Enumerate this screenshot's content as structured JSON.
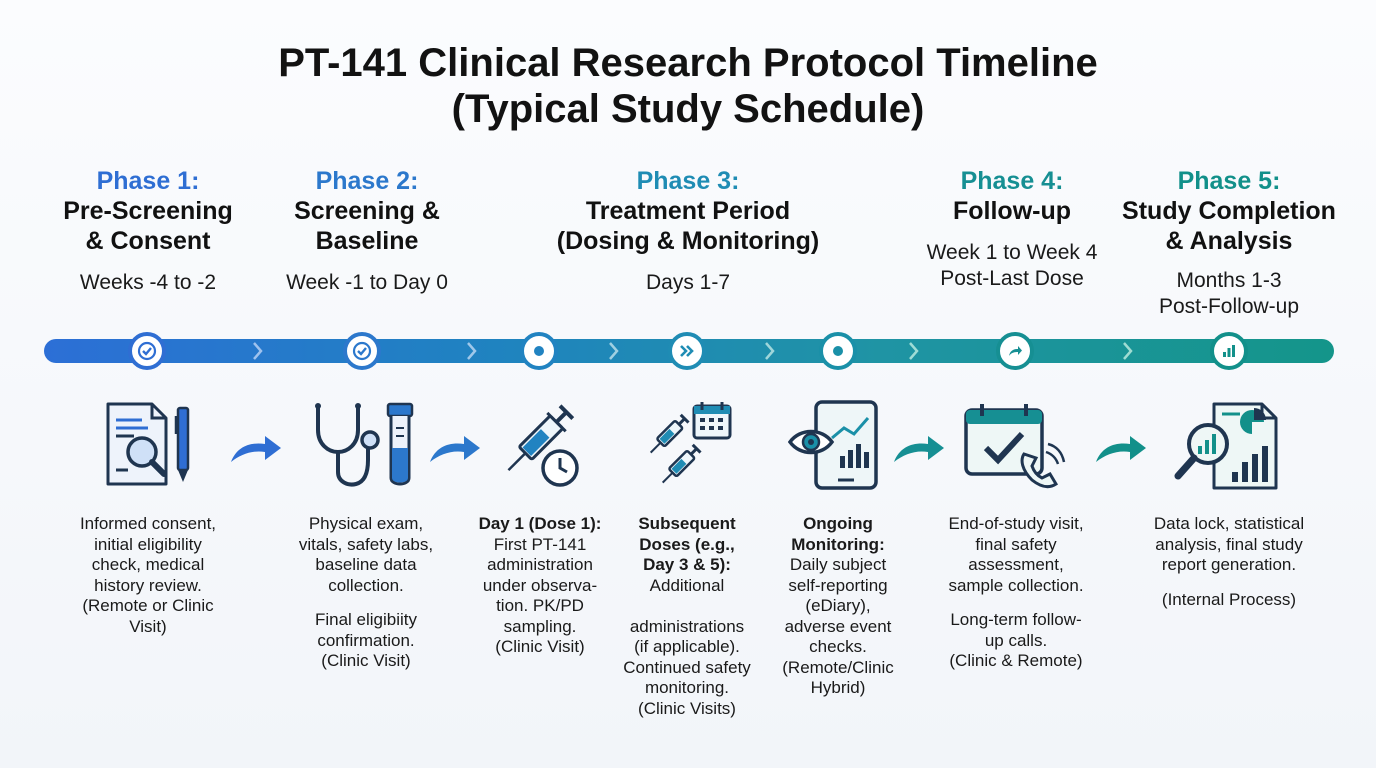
{
  "title": {
    "line1": "PT-141 Clinical Research Protocol Timeline",
    "line2": "(Typical Study Schedule)"
  },
  "colors": {
    "phase1": "#2f6ed3",
    "phase2": "#2c78cc",
    "phase3": "#1f8cb4",
    "phase4": "#168f93",
    "phase5": "#12908a",
    "icon_dark": "#1f3550"
  },
  "phases": [
    {
      "number": "Phase 1:",
      "name": [
        "Pre-Screening",
        "& Consent"
      ],
      "time": [
        "Weeks -4 to -2"
      ],
      "icon": "document-magnifier-pen-icon",
      "node_icon": "check-icon",
      "description": [
        "Informed consent,",
        "initial eligibility",
        "check, medical",
        "history review.",
        "(Remote or Clinic",
        "Visit)"
      ]
    },
    {
      "number": "Phase 2:",
      "name": [
        "Screening &",
        "Baseline"
      ],
      "time": [
        "Week -1 to Day 0"
      ],
      "icon": "stethoscope-test-tube-icon",
      "node_icon": "check-icon",
      "description": [
        "Physical exam,",
        "vitals, safety labs,",
        "baseline data",
        "collection."
      ],
      "description2": [
        "Final eligibiity",
        "confirmation.",
        "(Clinic Visit)"
      ]
    },
    {
      "number": "Phase 3:",
      "name": [
        "Treatment Period",
        "(Dosing & Monitoring)"
      ],
      "time": [
        "Days 1-7"
      ],
      "icon": "syringe-clock-icon",
      "node_icon": "dot-icon"
    },
    {
      "number": "Phase 4:",
      "name": [
        "Follow-up"
      ],
      "time": [
        "Week 1 to Week 4",
        "Post-Last Dose"
      ],
      "icon": "calendar-check-phone-icon",
      "node_icon": "share-arrow-icon",
      "description": [
        "End-of-study visit,",
        "final safety",
        "assessment,",
        "sample collection."
      ],
      "description2": [
        "Long-term follow-",
        "up calls.",
        "(Clinic & Remote)"
      ]
    },
    {
      "number": "Phase 5:",
      "name": [
        "Study Completion",
        "& Analysis"
      ],
      "time": [
        "Months 1-3",
        "Post-Follow-up"
      ],
      "icon": "report-magnifier-chart-icon",
      "node_icon": "bar-chart-icon",
      "description": [
        "Data lock, statistical",
        "analysis, final study",
        "report generation."
      ],
      "description2": [
        "(Internal Process)"
      ]
    }
  ],
  "treatment_steps": [
    {
      "icon": "syringe-clock-icon",
      "node_icon": "dot-icon",
      "heading": "Day 1 (Dose 1):",
      "description": [
        "First PT-141",
        "administration",
        "under observa-",
        "tion. PK/PD",
        "sampling.",
        "(Clinic Visit)"
      ]
    },
    {
      "icon": "syringes-calendar-icon",
      "node_icon": "fast-forward-icon",
      "heading": [
        "Subsequent",
        "Doses (e.g.,",
        "Day 3 & 5):"
      ],
      "description": [
        "Additional",
        "",
        "administrations",
        "(if applicable).",
        "Continued safety",
        "monitoring.",
        "(Clinic Visits)"
      ]
    },
    {
      "icon": "tablet-eye-chart-icon",
      "node_icon": "dot-icon",
      "heading": [
        "Ongoing",
        "Monitoring:"
      ],
      "description": [
        "Daily subject",
        "self-reporting",
        "(eDiary),",
        "adverse event",
        "checks.",
        "(Remote/Clinic",
        "Hybrid)"
      ]
    }
  ]
}
